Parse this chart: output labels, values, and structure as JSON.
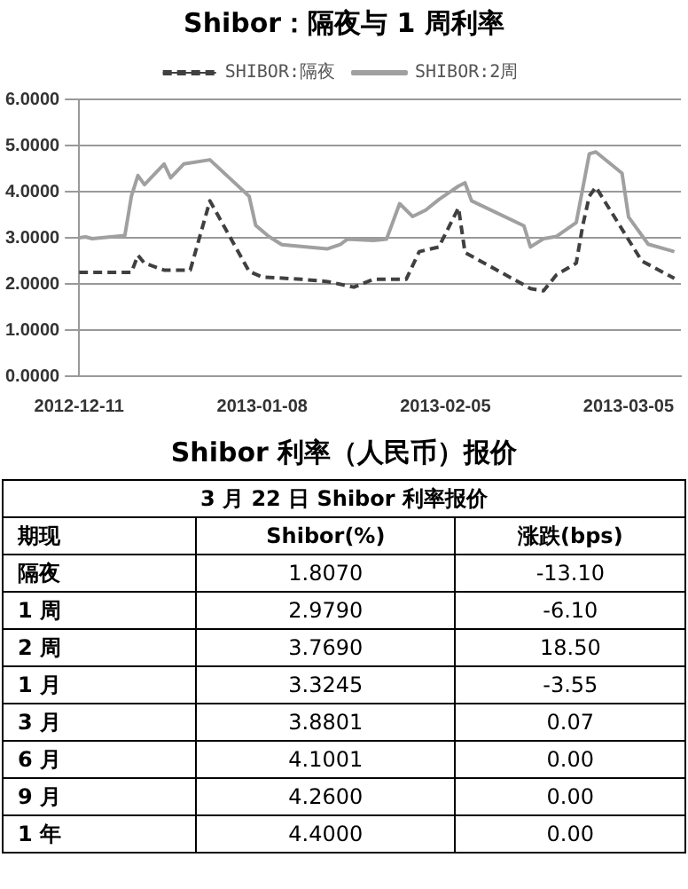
{
  "chart_data": [
    {
      "type": "line",
      "title": "Shibor：隔夜与 1 周利率",
      "legend": "top",
      "grid": "y",
      "marker": "none",
      "xlim": [
        "2012-12-11",
        "2013-03-13"
      ],
      "xticks": [
        "2012-12-11",
        "2013-01-08",
        "2013-02-05",
        "2013-03-05"
      ],
      "ylim": [
        0,
        6
      ],
      "yticks": [
        {
          "value": 0,
          "label": "0.0000"
        },
        {
          "value": 1,
          "label": "1.0000"
        },
        {
          "value": 2,
          "label": "2.0000"
        },
        {
          "value": 3,
          "label": "3.0000"
        },
        {
          "value": 4,
          "label": "4.0000"
        },
        {
          "value": 5,
          "label": "5.0000"
        },
        {
          "value": 6,
          "label": "6.0000"
        }
      ],
      "series": [
        {
          "name": "SHIBOR:隔夜",
          "color": "#404040",
          "line_style": "dashed",
          "x": [
            "2012-12-11",
            "2012-12-19",
            "2012-12-20",
            "2012-12-21",
            "2012-12-24",
            "2012-12-28",
            "2012-12-31",
            "2013-01-06",
            "2013-01-08",
            "2013-01-14",
            "2013-01-18",
            "2013-01-22",
            "2013-01-25",
            "2013-01-30",
            "2013-02-01",
            "2013-02-04",
            "2013-02-07",
            "2013-02-08",
            "2013-02-18",
            "2013-02-20",
            "2013-02-22",
            "2013-02-25",
            "2013-02-26",
            "2013-02-27",
            "2013-02-28",
            "2013-03-07",
            "2013-03-12"
          ],
          "values": [
            2.25,
            2.25,
            2.62,
            2.45,
            2.3,
            2.3,
            3.8,
            2.27,
            2.15,
            2.1,
            2.05,
            1.93,
            2.1,
            2.1,
            2.7,
            2.8,
            3.65,
            2.68,
            1.9,
            1.85,
            2.2,
            2.45,
            3.27,
            3.9,
            4.1,
            2.5,
            2.12
          ]
        },
        {
          "name": "SHIBOR:2周",
          "color": "#a0a0a0",
          "line_style": "solid",
          "x": [
            "2012-12-11",
            "2012-12-12",
            "2012-12-13",
            "2012-12-18",
            "2012-12-19",
            "2012-12-20",
            "2012-12-21",
            "2012-12-24",
            "2012-12-25",
            "2012-12-27",
            "2012-12-31",
            "2013-01-06",
            "2013-01-07",
            "2013-01-09",
            "2013-01-11",
            "2013-01-15",
            "2013-01-18",
            "2013-01-20",
            "2013-01-21",
            "2013-01-25",
            "2013-01-27",
            "2013-01-29",
            "2013-01-31",
            "2013-02-02",
            "2013-02-04",
            "2013-02-07",
            "2013-02-08",
            "2013-02-09",
            "2013-02-17",
            "2013-02-18",
            "2013-02-20",
            "2013-02-22",
            "2013-02-25",
            "2013-02-27",
            "2013-02-28",
            "2013-03-04",
            "2013-03-05",
            "2013-03-08",
            "2013-03-12"
          ],
          "values": [
            3.0,
            3.02,
            2.98,
            3.05,
            3.9,
            4.35,
            4.15,
            4.6,
            4.3,
            4.6,
            4.69,
            3.9,
            3.27,
            3.03,
            2.85,
            2.8,
            2.76,
            2.86,
            2.97,
            2.94,
            2.97,
            3.74,
            3.46,
            3.6,
            3.83,
            4.12,
            4.19,
            3.8,
            3.26,
            2.8,
            2.98,
            3.03,
            3.33,
            4.82,
            4.86,
            4.4,
            3.45,
            2.86,
            2.7
          ]
        }
      ]
    },
    {
      "type": "heatmap",
      "title": "Shibor 利率（人民币）报价",
      "subtitle": "3 月 22 日 Shibor 利率报价",
      "ylabel": "期现",
      "categories": [
        "Shibor(%)",
        "涨跌(bps)"
      ],
      "y_categories": [
        "隔夜",
        "1 周",
        "2 周",
        "1 月",
        "3 月",
        "6 月",
        "9 月",
        "1 年"
      ],
      "cells": [
        [
          1.807,
          -13.1
        ],
        [
          2.979,
          -6.1
        ],
        [
          3.769,
          18.5
        ],
        [
          3.3245,
          -3.55
        ],
        [
          3.8801,
          0.07
        ],
        [
          4.1001,
          0.0
        ],
        [
          4.26,
          0.0
        ],
        [
          4.4,
          0.0
        ]
      ],
      "cell_labels": [
        [
          "1.8070",
          "-13.10"
        ],
        [
          "2.9790",
          "-6.10"
        ],
        [
          "3.7690",
          "18.50"
        ],
        [
          "3.3245",
          "-3.55"
        ],
        [
          "3.8801",
          "0.07"
        ],
        [
          "4.1001",
          "0.00"
        ],
        [
          "4.2600",
          "0.00"
        ],
        [
          "4.4000",
          "0.00"
        ]
      ]
    }
  ]
}
